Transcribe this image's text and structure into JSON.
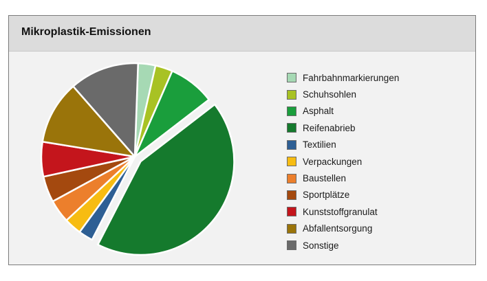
{
  "panel": {
    "title": "Mikroplastik-Emissionen"
  },
  "chart_data": {
    "type": "pie",
    "title": "Mikroplastik-Emissionen",
    "legend_position": "right",
    "exploded": [
      "Reifenabrieb"
    ],
    "slices": [
      {
        "label": "Fahrbahnmarkierungen",
        "value": 3.0,
        "color": "#a6d9b4"
      },
      {
        "label": "Schuhsohlen",
        "value": 3.0,
        "color": "#a8c224"
      },
      {
        "label": "Asphalt",
        "value": 8.0,
        "color": "#1a9e3c"
      },
      {
        "label": "Reifenabrieb",
        "value": 43.0,
        "color": "#157a2d"
      },
      {
        "label": "Textilien",
        "value": 2.5,
        "color": "#2e5f94"
      },
      {
        "label": "Verpackungen",
        "value": 3.0,
        "color": "#f7bc12"
      },
      {
        "label": "Baustellen",
        "value": 4.0,
        "color": "#ec7f2c"
      },
      {
        "label": "Sportplätze",
        "value": 4.5,
        "color": "#a4490f"
      },
      {
        "label": "Kunststoffgranulat",
        "value": 6.0,
        "color": "#c4151c"
      },
      {
        "label": "Abfallentsorgung",
        "value": 11.0,
        "color": "#9a740a"
      },
      {
        "label": "Sonstige",
        "value": 12.0,
        "color": "#6a6a6a"
      }
    ]
  }
}
